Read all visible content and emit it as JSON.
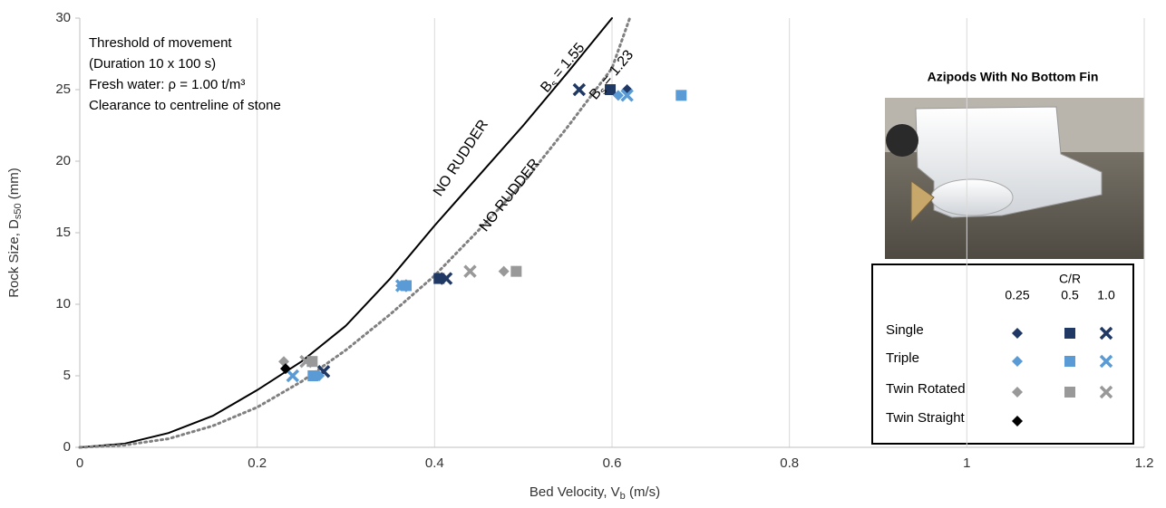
{
  "chart_data": {
    "type": "scatter",
    "xlabel": {
      "main": "Bed Velocity, V",
      "sub": "b",
      "tail": " (m/s)"
    },
    "ylabel": {
      "main": "Rock Size, D",
      "sub": "s50",
      "tail": " (mm)"
    },
    "xlim": [
      0,
      1.2
    ],
    "xticks": [
      0,
      0.2,
      0.4,
      0.6,
      0.8,
      1,
      1.2
    ],
    "ylim": [
      0,
      30
    ],
    "yticks": [
      0,
      5,
      10,
      15,
      20,
      25,
      30
    ],
    "xgrid": true,
    "notes": [
      "Threshold of movement",
      "(Duration 10 x 100 s)",
      "Fresh water: ρ = 1.00 t/m³",
      "Clearance to centreline of stone"
    ],
    "curves": [
      {
        "label": "NO RUDDER",
        "symbol": "B",
        "subscript": "s",
        "equals": " = 1.55",
        "color": "#000000",
        "style": "solid",
        "x": [
          0,
          0.05,
          0.1,
          0.15,
          0.2,
          0.25,
          0.3,
          0.35,
          0.4,
          0.45,
          0.5,
          0.55,
          0.6
        ],
        "values": [
          0,
          0.25,
          1,
          2.2,
          4,
          6,
          8.5,
          11.8,
          15.5,
          19,
          22.5,
          26.2,
          30
        ]
      },
      {
        "label": "NO RUDDER",
        "symbol": "B",
        "subscript": "s",
        "equals": " = 1.23",
        "color": "#808080",
        "style": "dotted",
        "x": [
          0,
          0.05,
          0.1,
          0.15,
          0.2,
          0.25,
          0.3,
          0.35,
          0.4,
          0.45,
          0.5,
          0.55,
          0.6,
          0.62
        ],
        "values": [
          0,
          0.15,
          0.6,
          1.5,
          2.8,
          4.6,
          6.8,
          9.3,
          12,
          15.2,
          18.5,
          22.4,
          26.5,
          30
        ]
      }
    ],
    "inset_title": "Azipods With No Bottom Fin",
    "legend": {
      "title": "C/R",
      "columns": [
        "0.25",
        "0.5",
        "1.0"
      ]
    },
    "groups": [
      {
        "name": "Single",
        "color": "#203864",
        "series": [
          {
            "marker": "diamond",
            "x": [
              0.41,
              0.617
            ],
            "values": [
              11.8,
              25
            ]
          },
          {
            "marker": "square",
            "x": [
              0.405,
              0.598
            ],
            "values": [
              11.8,
              25
            ]
          },
          {
            "marker": "cross",
            "x": [
              0.275,
              0.413,
              0.563
            ],
            "values": [
              5.3,
              11.8,
              25
            ]
          }
        ]
      },
      {
        "name": "Triple",
        "color": "#5b9bd5",
        "series": [
          {
            "marker": "diamond",
            "x": [
              0.27,
              0.362,
              0.607
            ],
            "values": [
              5,
              11.3,
              24.6
            ]
          },
          {
            "marker": "square",
            "x": [
              0.263,
              0.368,
              0.678
            ],
            "values": [
              5,
              11.3,
              24.6
            ]
          },
          {
            "marker": "cross",
            "x": [
              0.24,
              0.363,
              0.617
            ],
            "values": [
              5,
              11.3,
              24.6
            ]
          }
        ]
      },
      {
        "name": "Twin Rotated",
        "color": "#999999",
        "series": [
          {
            "marker": "diamond",
            "x": [
              0.23,
              0.478
            ],
            "values": [
              6,
              12.3
            ]
          },
          {
            "marker": "square",
            "x": [
              0.262,
              0.492
            ],
            "values": [
              6,
              12.3
            ]
          },
          {
            "marker": "cross",
            "x": [
              0.255,
              0.44
            ],
            "values": [
              6,
              12.3
            ]
          }
        ]
      },
      {
        "name": "Twin Straight",
        "color": "#000000",
        "series": [
          {
            "marker": "diamond",
            "x": [
              0.232
            ],
            "values": [
              5.5
            ]
          }
        ]
      }
    ]
  }
}
